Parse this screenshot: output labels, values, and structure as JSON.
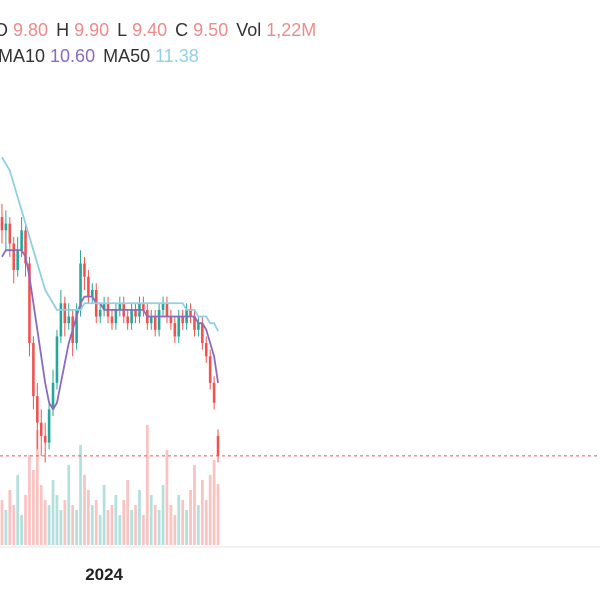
{
  "chart_data": {
    "type": "candlestick",
    "up_color": "#26a69a",
    "down_color": "#ef5350",
    "ylim": [
      9,
      15
    ],
    "volume_ylim": [
      0,
      2.5
    ],
    "xticks": [
      {
        "value": 26,
        "label": "2024"
      }
    ],
    "open": [
      13.1,
      12.9,
      13.0,
      12.7,
      12.3,
      12.6,
      12.9,
      12.4,
      11.2,
      10.4,
      10.0,
      9.8,
      9.7,
      10.2,
      10.6,
      11.3,
      11.8,
      11.5,
      11.6,
      11.2,
      11.7,
      12.4,
      12.2,
      11.9,
      12.0,
      11.6,
      11.7,
      11.8,
      11.6,
      11.5,
      11.7,
      11.8,
      11.6,
      11.5,
      11.7,
      11.6,
      11.8,
      11.7,
      11.5,
      11.6,
      11.4,
      11.7,
      11.8,
      11.6,
      11.5,
      11.3,
      11.6,
      11.5,
      11.7,
      11.6,
      11.4,
      11.5,
      11.2,
      11.0,
      10.6,
      9.8
    ],
    "high": [
      13.3,
      13.2,
      13.1,
      12.8,
      12.8,
      13.1,
      13.0,
      12.5,
      11.3,
      10.6,
      10.2,
      10.0,
      10.3,
      10.8,
      11.4,
      12.0,
      11.9,
      11.8,
      11.7,
      11.8,
      12.6,
      12.5,
      12.3,
      12.1,
      12.1,
      11.8,
      11.9,
      11.9,
      11.7,
      11.8,
      11.9,
      11.9,
      11.7,
      11.8,
      11.8,
      11.9,
      11.9,
      11.8,
      11.7,
      11.7,
      11.8,
      11.9,
      11.9,
      11.7,
      11.6,
      11.7,
      11.7,
      11.8,
      11.8,
      11.7,
      11.6,
      11.6,
      11.3,
      11.1,
      10.7,
      9.9
    ],
    "low": [
      12.7,
      12.6,
      12.5,
      12.1,
      12.2,
      12.5,
      12.2,
      11.0,
      10.2,
      9.6,
      9.5,
      9.4,
      9.6,
      10.1,
      10.5,
      11.2,
      11.3,
      11.4,
      11.0,
      11.1,
      11.6,
      12.0,
      11.8,
      11.8,
      11.5,
      11.5,
      11.6,
      11.5,
      11.4,
      11.4,
      11.6,
      11.5,
      11.4,
      11.4,
      11.5,
      11.5,
      11.6,
      11.4,
      11.4,
      11.3,
      11.3,
      11.6,
      11.5,
      11.4,
      11.2,
      11.2,
      11.4,
      11.4,
      11.5,
      11.3,
      11.3,
      11.1,
      10.9,
      10.5,
      10.2,
      9.4
    ],
    "close": [
      12.9,
      13.0,
      12.7,
      12.3,
      12.6,
      12.9,
      12.4,
      11.2,
      10.4,
      10.0,
      9.8,
      9.7,
      10.2,
      10.6,
      11.3,
      11.8,
      11.5,
      11.6,
      11.2,
      11.7,
      12.4,
      12.2,
      11.9,
      12.0,
      11.6,
      11.7,
      11.8,
      11.6,
      11.5,
      11.7,
      11.8,
      11.6,
      11.5,
      11.7,
      11.6,
      11.8,
      11.7,
      11.5,
      11.6,
      11.4,
      11.7,
      11.8,
      11.6,
      11.5,
      11.3,
      11.6,
      11.5,
      11.7,
      11.6,
      11.4,
      11.5,
      11.2,
      11.0,
      10.6,
      10.3,
      9.5
    ],
    "volume": [
      0.9,
      0.7,
      1.1,
      0.8,
      1.4,
      0.6,
      1.0,
      1.8,
      1.5,
      2.3,
      1.2,
      0.9,
      0.8,
      1.3,
      1.0,
      0.7,
      0.9,
      1.6,
      0.8,
      0.7,
      2.0,
      1.4,
      1.1,
      0.8,
      0.9,
      0.6,
      1.2,
      0.7,
      0.8,
      1.0,
      0.6,
      0.9,
      1.3,
      0.7,
      0.8,
      1.1,
      0.6,
      2.4,
      1.0,
      0.8,
      0.7,
      1.2,
      1.9,
      0.8,
      0.6,
      1.0,
      0.9,
      0.7,
      1.1,
      1.6,
      0.8,
      1.3,
      0.9,
      1.4,
      1.7,
      1.22
    ],
    "series": [
      {
        "name": "MA10",
        "color": "#8a6bbd",
        "values": [
          12.5,
          12.6,
          12.6,
          12.6,
          12.6,
          12.6,
          12.5,
          12.2,
          11.8,
          11.4,
          11.0,
          10.6,
          10.3,
          10.2,
          10.3,
          10.6,
          10.9,
          11.2,
          11.4,
          11.6,
          11.8,
          11.9,
          11.9,
          11.9,
          11.8,
          11.8,
          11.7,
          11.7,
          11.7,
          11.7,
          11.7,
          11.7,
          11.7,
          11.7,
          11.7,
          11.7,
          11.7,
          11.6,
          11.6,
          11.6,
          11.6,
          11.6,
          11.6,
          11.6,
          11.6,
          11.6,
          11.6,
          11.6,
          11.6,
          11.6,
          11.5,
          11.5,
          11.4,
          11.2,
          11.0,
          10.6
        ]
      },
      {
        "name": "MA50",
        "color": "#8fd0e3",
        "values": [
          14.0,
          13.9,
          13.8,
          13.6,
          13.4,
          13.2,
          13.0,
          12.8,
          12.6,
          12.4,
          12.2,
          12.0,
          11.9,
          11.8,
          11.7,
          11.7,
          11.7,
          11.7,
          11.7,
          11.7,
          11.7,
          11.8,
          11.8,
          11.8,
          11.8,
          11.8,
          11.8,
          11.8,
          11.8,
          11.8,
          11.8,
          11.8,
          11.8,
          11.8,
          11.8,
          11.8,
          11.8,
          11.8,
          11.8,
          11.8,
          11.8,
          11.8,
          11.8,
          11.8,
          11.8,
          11.8,
          11.8,
          11.7,
          11.7,
          11.7,
          11.6,
          11.6,
          11.6,
          11.5,
          11.5,
          11.38
        ]
      }
    ],
    "legend": {
      "ohlc": [
        {
          "name": "O",
          "label": "9.80"
        },
        {
          "name": "H",
          "label": "9.90"
        },
        {
          "name": "L",
          "label": "9.40"
        },
        {
          "name": "C",
          "label": "9.50"
        },
        {
          "name": "Vol",
          "label": "1,22M"
        }
      ],
      "ma_labels": [
        "10.60",
        "11.38"
      ]
    }
  }
}
